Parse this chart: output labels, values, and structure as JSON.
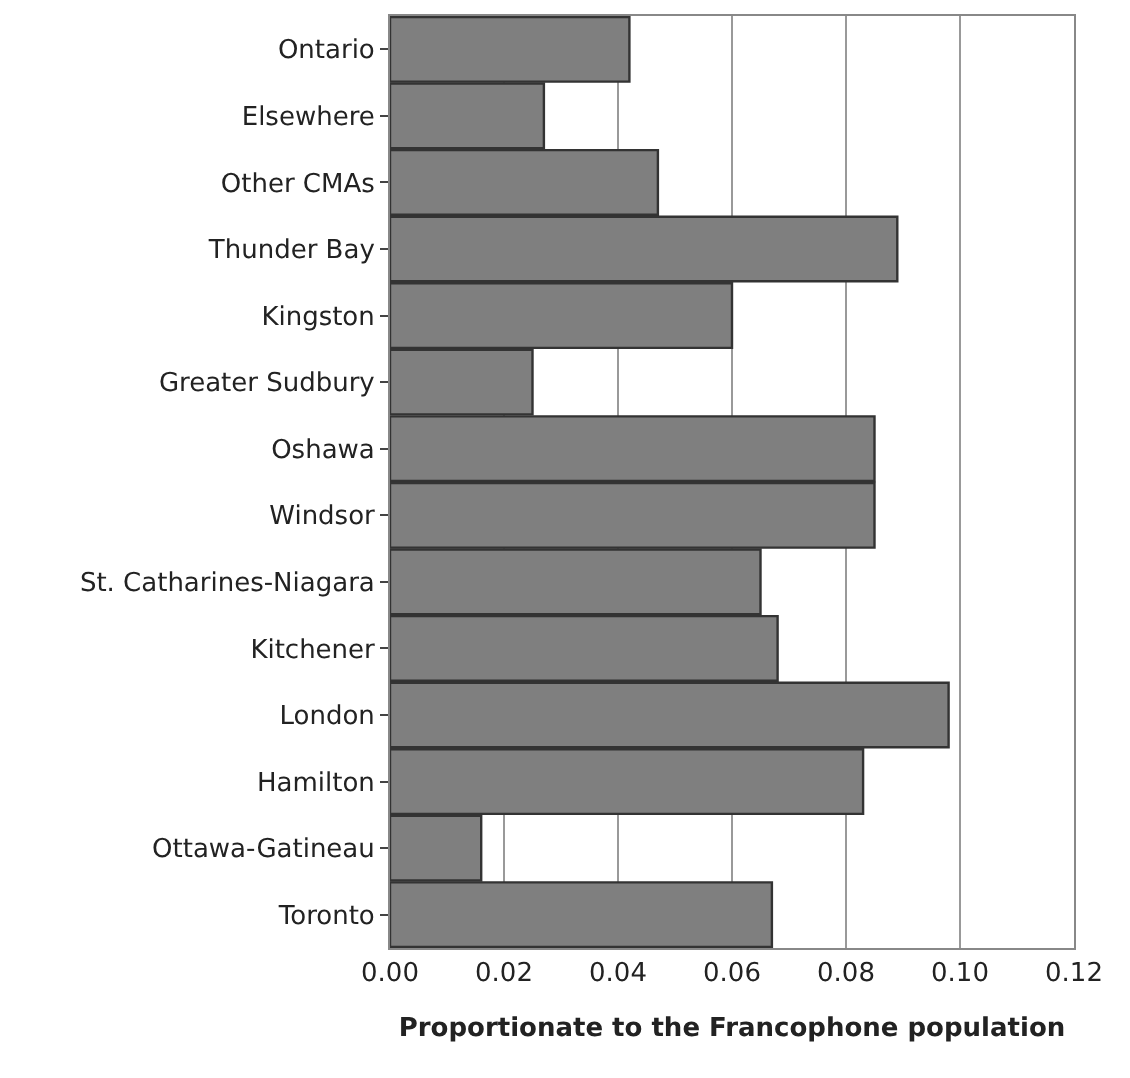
{
  "chart_data": {
    "type": "bar",
    "orientation": "horizontal",
    "xlabel": "Proportionate to the Francophone population",
    "categories": [
      "Ontario",
      "Elsewhere",
      "Other CMAs",
      "Thunder Bay",
      "Kingston",
      "Greater Sudbury",
      "Oshawa",
      "Windsor",
      "St. Catharines-Niagara",
      "Kitchener",
      "London",
      "Hamilton",
      "Ottawa-Gatineau",
      "Toronto"
    ],
    "values": [
      0.042,
      0.027,
      0.047,
      0.089,
      0.06,
      0.025,
      0.085,
      0.085,
      0.065,
      0.068,
      0.098,
      0.083,
      0.016,
      0.067
    ],
    "color": "#7f7f7f",
    "xlim": [
      0,
      0.12
    ],
    "xticks": [
      {
        "value": 0,
        "label": "0.00"
      },
      {
        "value": 0.02,
        "label": "0.02"
      },
      {
        "value": 0.04,
        "label": "0.04"
      },
      {
        "value": 0.06,
        "label": "0.06"
      },
      {
        "value": 0.08,
        "label": "0.08"
      },
      {
        "value": 0.1,
        "label": "0.10"
      },
      {
        "value": 0.12,
        "label": "0.12"
      }
    ],
    "grid": "x"
  }
}
